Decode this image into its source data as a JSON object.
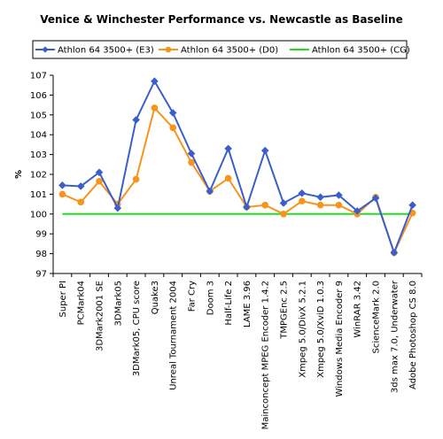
{
  "chart_data": {
    "type": "line",
    "title": "Venice & Winchester Performance vs. Newcastle as Baseline",
    "ylabel": "%",
    "xlabel": "",
    "ylim": [
      97,
      107
    ],
    "yticks": [
      97,
      98,
      99,
      100,
      101,
      102,
      103,
      104,
      105,
      106,
      107
    ],
    "grid": false,
    "legend": "top",
    "categories": [
      "Super PI",
      "PCMark04",
      "3DMark2001 SE",
      "3DMark05",
      "3DMark05, CPU score",
      "Quake3",
      "Unreal Tournament 2004",
      "Far Cry",
      "Doom 3",
      "Half-Life 2",
      "LAME 3.96",
      "Mainconcept MPEG Encoder 1.4.2",
      "TMPGEnc 2.5",
      "Xmpeg 5.0/DivX 5.2.1",
      "Xmpeg 5.0/XviD 1.0.3",
      "Windows Media Encoder 9",
      "WinRAR 3.42",
      "ScienceMark 2.0",
      "3ds max 7.0, Underwater",
      "Adobe Photoshop CS 8.0"
    ],
    "series": [
      {
        "name": "Athlon 64 3500+ (E3)",
        "color": "#3A5FCD",
        "marker": "diamond",
        "values": [
          101.45,
          101.4,
          102.1,
          100.3,
          104.75,
          106.7,
          105.1,
          103.05,
          101.15,
          103.3,
          100.35,
          103.2,
          100.55,
          101.05,
          100.85,
          100.95,
          100.15,
          100.8,
          98.05,
          100.45
        ]
      },
      {
        "name": "Athlon 64 3500+ (D0)",
        "color": "#F7941D",
        "marker": "circle",
        "values": [
          101.0,
          100.6,
          101.65,
          100.5,
          101.75,
          105.35,
          104.35,
          102.6,
          101.15,
          101.8,
          100.35,
          100.45,
          100.0,
          100.65,
          100.45,
          100.45,
          100.0,
          100.85,
          98.05,
          100.05
        ]
      },
      {
        "name": "Athlon 64 3500+ (CG)",
        "color": "#22DD22",
        "marker": "none",
        "values": [
          100,
          100,
          100,
          100,
          100,
          100,
          100,
          100,
          100,
          100,
          100,
          100,
          100,
          100,
          100,
          100,
          100,
          100,
          100,
          100
        ]
      }
    ]
  }
}
